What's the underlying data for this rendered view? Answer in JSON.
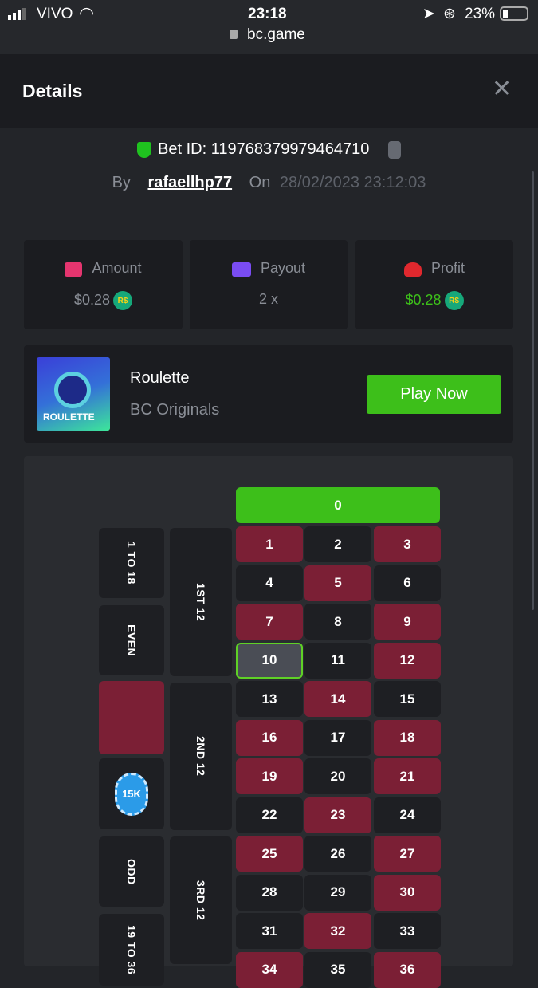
{
  "status_bar": {
    "carrier": "VIVO",
    "time": "23:18",
    "battery": "23%",
    "url": "bc.game"
  },
  "header": {
    "title": "Details"
  },
  "bet": {
    "id_label": "Bet ID: 119768379979464710",
    "by_label": "By",
    "user": "rafaellhp77",
    "on_label": "On",
    "date": "28/02/2023 23:12:03"
  },
  "stats": [
    {
      "label": "Amount",
      "value": "$0.28",
      "currency": "R$",
      "icon": "money-bag-icon",
      "color": "#e5356f"
    },
    {
      "label": "Payout",
      "value": "2 x",
      "icon": "card-icon",
      "color": "#7a4cf3"
    },
    {
      "label": "Profit",
      "value": "$0.28",
      "currency": "R$",
      "icon": "hand-profit-icon",
      "color": "#e0282e"
    }
  ],
  "game": {
    "name": "Roulette",
    "provider": "BC Originals",
    "thumb_text": "ROULETTE",
    "play_label": "Play Now"
  },
  "board": {
    "zero": "0",
    "numbers": [
      "1",
      "2",
      "3",
      "4",
      "5",
      "6",
      "7",
      "8",
      "9",
      "10",
      "11",
      "12",
      "13",
      "14",
      "15",
      "16",
      "17",
      "18",
      "19",
      "20",
      "21",
      "22",
      "23",
      "24",
      "25",
      "26",
      "27",
      "28",
      "29",
      "30",
      "31",
      "32",
      "33",
      "34",
      "35",
      "36"
    ],
    "red_numbers": [
      1,
      3,
      5,
      7,
      9,
      12,
      14,
      16,
      18,
      19,
      21,
      23,
      25,
      27,
      30,
      32,
      34,
      36
    ],
    "selected_number": "10",
    "outside": [
      "1 TO 18",
      "EVEN",
      "",
      "",
      "ODD",
      "19 TO 36"
    ],
    "dozens": [
      "1ST 12",
      "2ND 12",
      "3RD 12"
    ],
    "chip_label": "15K",
    "colors": {
      "red": "#7b1f35",
      "black": "#1e1f23",
      "green": "#3dbf1a",
      "selected_border": "#5fd126"
    }
  }
}
